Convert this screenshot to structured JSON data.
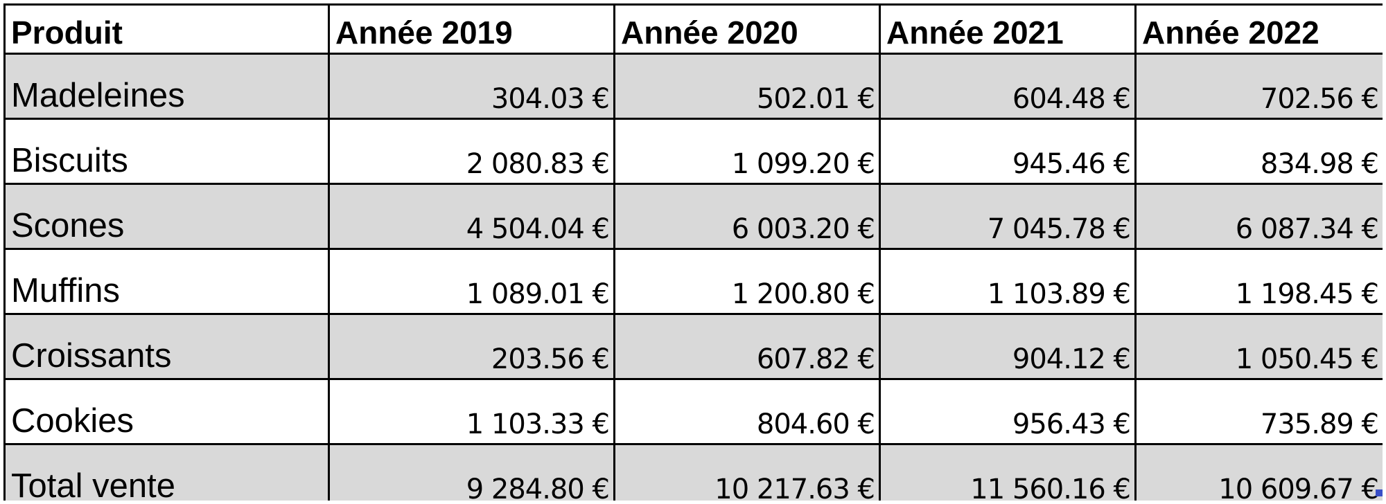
{
  "table": {
    "headers": [
      "Produit",
      "Année 2019",
      "Année 2020",
      "Année 2021",
      "Année 2022"
    ],
    "rows": [
      {
        "label": "Madeleines",
        "values": [
          "304.03 €",
          "502.01 €",
          "604.48 €",
          "702.56 €"
        ]
      },
      {
        "label": "Biscuits",
        "values": [
          "2 080.83 €",
          "1 099.20 €",
          "945.46 €",
          "834.98 €"
        ]
      },
      {
        "label": "Scones",
        "values": [
          "4 504.04 €",
          "6 003.20 €",
          "7 045.78 €",
          "6 087.34 €"
        ]
      },
      {
        "label": "Muffins",
        "values": [
          "1 089.01 €",
          "1 200.80 €",
          "1 103.89 €",
          "1 198.45 €"
        ]
      },
      {
        "label": "Croissants",
        "values": [
          "203.56 €",
          "607.82 €",
          "904.12 €",
          "1 050.45 €"
        ]
      },
      {
        "label": "Cookies",
        "values": [
          "1 103.33 €",
          "804.60 €",
          "956.43 €",
          "735.89 €"
        ]
      },
      {
        "label": "Total vente",
        "values": [
          "9 284.80 €",
          "10 217.63 €",
          "11 560.16 €",
          "10 609.67 €"
        ]
      }
    ]
  },
  "colors": {
    "shaded_row": "#d9d9d9",
    "border": "#000000",
    "selection_handle": "#3a4fc7"
  }
}
